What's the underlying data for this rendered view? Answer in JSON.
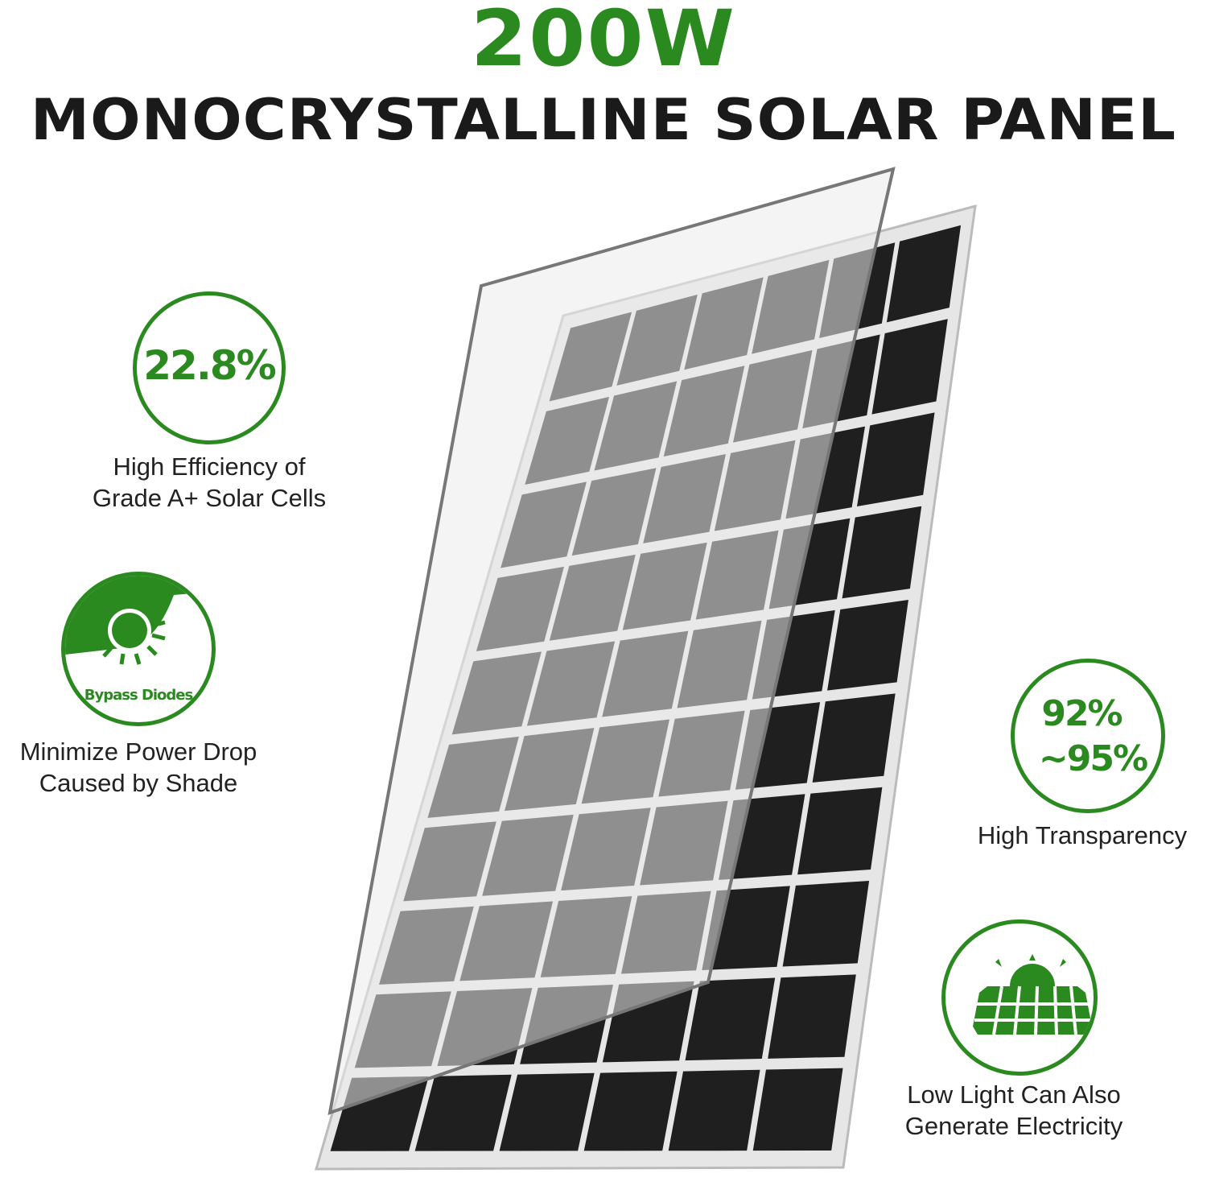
{
  "header": {
    "wattage": "200W",
    "product": "MONOCRYSTALLINE SOLAR PANEL"
  },
  "features": [
    {
      "badge": "22.8%",
      "caption_line1": "High Efficiency of",
      "caption_line2": "Grade A+ Solar Cells",
      "icon": "percent-badge"
    },
    {
      "badge": "Bypass Diodes",
      "caption_line1": "Minimize Power Drop",
      "caption_line2": "Caused by Shade",
      "icon": "shaded-sun-icon"
    },
    {
      "badge_line1": "92%",
      "badge_line2": "~95%",
      "caption_line1": "High Transparency",
      "icon": "percent-badge"
    },
    {
      "caption_line1": "Low Light Can Also",
      "caption_line2": "Generate Electricity",
      "icon": "solar-panel-sun-icon"
    }
  ],
  "colors": {
    "accent": "#2a8a1f",
    "title": "#1a1a1a"
  }
}
